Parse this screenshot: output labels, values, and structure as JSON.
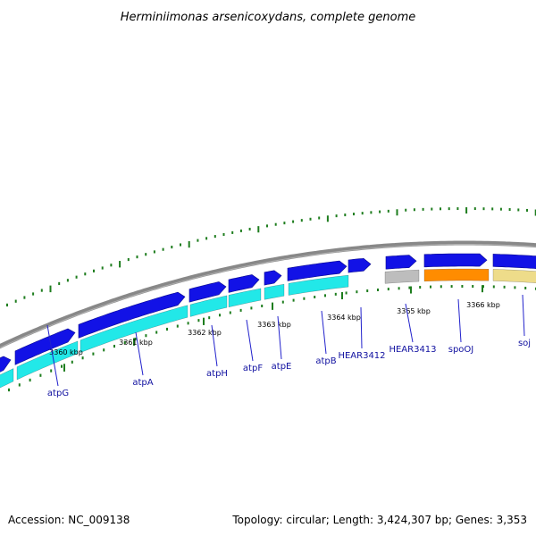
{
  "title": "Herminiimonas arsenicoxydans, complete genome",
  "footer": {
    "accession": "Accession: NC_009138",
    "topology": "Topology: circular; Length: 3,424,307 bp; Genes: 3,353"
  },
  "colors": {
    "backbone": "#888888",
    "gene_track": "#1212e6",
    "cds_cyan": "#22e8e8",
    "cds_grey": "#bdbdbd",
    "cds_orange": "#ff8c00",
    "cds_khaki": "#eedc8a",
    "gc_marks": "#1e7d1e",
    "label_line": "#2222cc",
    "label_text": "#1010a0"
  },
  "ticks": [
    {
      "label": "3360 kbp"
    },
    {
      "label": "3361 kbp"
    },
    {
      "label": "3362 kbp"
    },
    {
      "label": "3363 kbp"
    },
    {
      "label": "3364 kbp"
    },
    {
      "label": "3365 kbp"
    },
    {
      "label": "3366 kbp"
    }
  ],
  "genes": [
    {
      "name": "atpG"
    },
    {
      "name": "atpA"
    },
    {
      "name": "atpH"
    },
    {
      "name": "atpF"
    },
    {
      "name": "atpE"
    },
    {
      "name": "atpB"
    },
    {
      "name": "HEAR3412"
    },
    {
      "name": "HEAR3413"
    },
    {
      "name": "spoOJ"
    },
    {
      "name": "soj"
    }
  ]
}
